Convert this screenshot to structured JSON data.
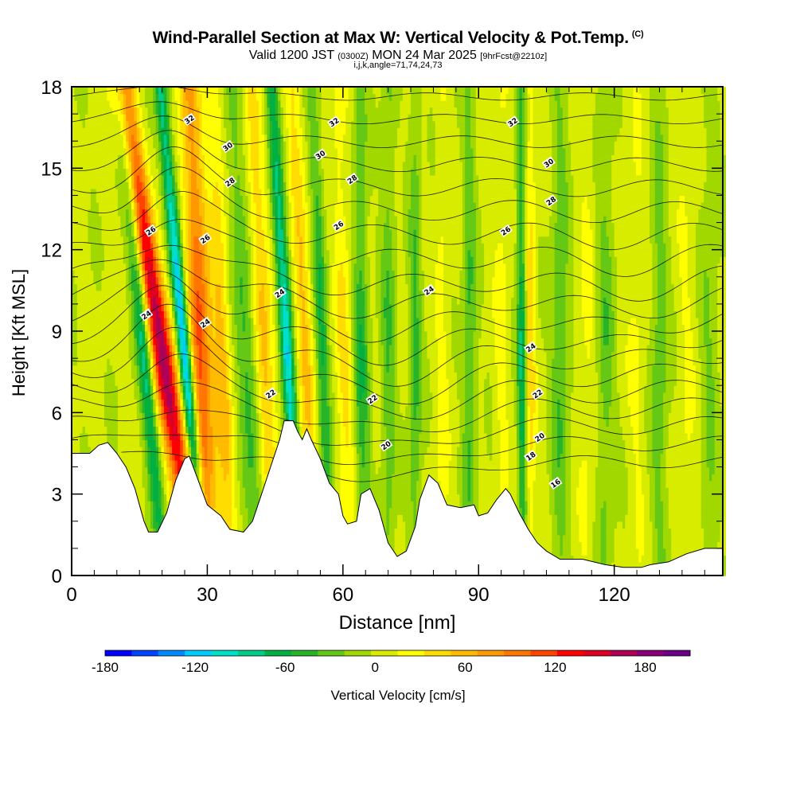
{
  "header": {
    "title": "Wind-Parallel Section at Max W: Vertical Velocity & Pot.Temp.",
    "title_tag": "(C)",
    "valid_main": "Valid 1200 JST",
    "valid_utc": "(0300Z)",
    "valid_date": "MON 24 Mar 2025",
    "forecast": "[9hrFcst@2210z]",
    "grid_info": "i,j,k,angle=71,74,24,73"
  },
  "chart_data": {
    "type": "heatmap",
    "xlabel": "Distance [nm]",
    "ylabel": "Height [Kft MSL]",
    "xlim": [
      0,
      144
    ],
    "ylim": [
      0,
      18
    ],
    "x_ticks": [
      "0",
      "30",
      "60",
      "90",
      "120"
    ],
    "y_ticks": [
      "0",
      "3",
      "6",
      "9",
      "12",
      "15",
      "18"
    ],
    "colorbar": {
      "label": "Vertical Velocity [cm/s]",
      "tick_labels": [
        "-180",
        "-120",
        "-60",
        "0",
        "60",
        "120",
        "180"
      ],
      "tick_values": [
        -180,
        -120,
        -60,
        0,
        60,
        120,
        180
      ],
      "range": [
        -180,
        210
      ],
      "colors": [
        "#0000ff",
        "#0044ff",
        "#0088ff",
        "#00ccff",
        "#00e0c8",
        "#00cc88",
        "#00b040",
        "#28b428",
        "#64c814",
        "#a0d800",
        "#d8ec00",
        "#ffff00",
        "#ffdd00",
        "#ffbb00",
        "#ff9900",
        "#ff7700",
        "#ff4400",
        "#ff0000",
        "#dd0022",
        "#b00055",
        "#880077",
        "#6a0088"
      ]
    },
    "terrain_kft": [
      {
        "x": 0,
        "y": 4.5
      },
      {
        "x": 4,
        "y": 4.5
      },
      {
        "x": 6,
        "y": 4.8
      },
      {
        "x": 8,
        "y": 4.9
      },
      {
        "x": 10,
        "y": 4.5
      },
      {
        "x": 12,
        "y": 4.0
      },
      {
        "x": 14,
        "y": 3.2
      },
      {
        "x": 16,
        "y": 2.0
      },
      {
        "x": 17,
        "y": 1.6
      },
      {
        "x": 19,
        "y": 1.6
      },
      {
        "x": 21,
        "y": 2.3
      },
      {
        "x": 23,
        "y": 3.5
      },
      {
        "x": 25,
        "y": 4.3
      },
      {
        "x": 26,
        "y": 4.4
      },
      {
        "x": 28,
        "y": 3.5
      },
      {
        "x": 30,
        "y": 2.6
      },
      {
        "x": 33,
        "y": 2.2
      },
      {
        "x": 35,
        "y": 1.7
      },
      {
        "x": 38,
        "y": 1.6
      },
      {
        "x": 40,
        "y": 2.0
      },
      {
        "x": 42,
        "y": 3.0
      },
      {
        "x": 44,
        "y": 4.0
      },
      {
        "x": 46,
        "y": 5.0
      },
      {
        "x": 47,
        "y": 5.7
      },
      {
        "x": 49,
        "y": 5.7
      },
      {
        "x": 50,
        "y": 5.3
      },
      {
        "x": 51,
        "y": 5.0
      },
      {
        "x": 52,
        "y": 5.4
      },
      {
        "x": 53,
        "y": 5.0
      },
      {
        "x": 55,
        "y": 4.3
      },
      {
        "x": 57,
        "y": 3.4
      },
      {
        "x": 59,
        "y": 3.0
      },
      {
        "x": 60,
        "y": 2.2
      },
      {
        "x": 61,
        "y": 1.9
      },
      {
        "x": 63,
        "y": 2.0
      },
      {
        "x": 64,
        "y": 3.0
      },
      {
        "x": 66,
        "y": 3.2
      },
      {
        "x": 68,
        "y": 2.4
      },
      {
        "x": 70,
        "y": 1.2
      },
      {
        "x": 72,
        "y": 0.7
      },
      {
        "x": 74,
        "y": 0.9
      },
      {
        "x": 76,
        "y": 1.8
      },
      {
        "x": 77,
        "y": 2.8
      },
      {
        "x": 79,
        "y": 3.7
      },
      {
        "x": 81,
        "y": 3.4
      },
      {
        "x": 83,
        "y": 2.6
      },
      {
        "x": 86,
        "y": 2.5
      },
      {
        "x": 89,
        "y": 2.6
      },
      {
        "x": 90,
        "y": 2.2
      },
      {
        "x": 92,
        "y": 2.3
      },
      {
        "x": 94,
        "y": 2.8
      },
      {
        "x": 96,
        "y": 3.2
      },
      {
        "x": 97,
        "y": 3.0
      },
      {
        "x": 99,
        "y": 2.3
      },
      {
        "x": 101,
        "y": 1.7
      },
      {
        "x": 103,
        "y": 1.2
      },
      {
        "x": 105,
        "y": 0.9
      },
      {
        "x": 108,
        "y": 0.6
      },
      {
        "x": 113,
        "y": 0.6
      },
      {
        "x": 118,
        "y": 0.4
      },
      {
        "x": 122,
        "y": 0.3
      },
      {
        "x": 126,
        "y": 0.3
      },
      {
        "x": 128,
        "y": 0.4
      },
      {
        "x": 132,
        "y": 0.5
      },
      {
        "x": 136,
        "y": 0.8
      },
      {
        "x": 140,
        "y": 1.0
      },
      {
        "x": 144,
        "y": 1.0
      }
    ],
    "features": [
      {
        "x": 15,
        "slope": 0.55,
        "w": 1.6,
        "amp": -85
      },
      {
        "x": 18.5,
        "slope": 0.9,
        "w": 2.6,
        "amp": 170
      },
      {
        "x": 24,
        "slope": 0.55,
        "w": 1.5,
        "amp": -150
      },
      {
        "x": 28,
        "slope": 0.25,
        "w": 2.6,
        "amp": 115
      },
      {
        "x": 33,
        "slope": 0.2,
        "w": 1.8,
        "amp": 55
      },
      {
        "x": 38,
        "slope": 0.35,
        "w": 2.2,
        "amp": -50
      },
      {
        "x": 42,
        "slope": 0.3,
        "w": 2.0,
        "amp": 60
      },
      {
        "x": 47,
        "slope": 0.35,
        "w": 1.5,
        "amp": -110
      },
      {
        "x": 51,
        "slope": 0.25,
        "w": 1.8,
        "amp": 55
      },
      {
        "x": 55,
        "slope": 0.2,
        "w": 1.4,
        "amp": -60
      },
      {
        "x": 60,
        "slope": 0.1,
        "w": 1.8,
        "amp": 35
      },
      {
        "x": 64,
        "slope": 0.05,
        "w": 1.6,
        "amp": -55
      },
      {
        "x": 70,
        "slope": 0.0,
        "w": 1.6,
        "amp": -40
      },
      {
        "x": 76,
        "slope": 0.0,
        "w": 1.4,
        "amp": -45
      },
      {
        "x": 82,
        "slope": 0.0,
        "w": 1.6,
        "amp": 20
      },
      {
        "x": 88,
        "slope": 0.0,
        "w": 1.5,
        "amp": -45
      },
      {
        "x": 95,
        "slope": 0.0,
        "w": 1.5,
        "amp": 20
      },
      {
        "x": 99.5,
        "slope": 0.03,
        "w": 1.0,
        "amp": -75
      },
      {
        "x": 101.5,
        "slope": 0.0,
        "w": 1.0,
        "amp": 45
      },
      {
        "x": 108,
        "slope": 0.0,
        "w": 2.0,
        "amp": -40
      },
      {
        "x": 114,
        "slope": 0.0,
        "w": 2.0,
        "amp": 18
      },
      {
        "x": 118,
        "slope": 0.0,
        "w": 2.0,
        "amp": -35
      },
      {
        "x": 125,
        "slope": 0.0,
        "w": 2.0,
        "amp": 15
      },
      {
        "x": 130,
        "slope": 0.0,
        "w": 2.0,
        "amp": -35
      },
      {
        "x": 136,
        "slope": 0.0,
        "w": 2.0,
        "amp": 15
      },
      {
        "x": 141,
        "slope": 0.0,
        "w": 2.0,
        "amp": -25
      }
    ],
    "isentrope_labels": [
      {
        "text": "32",
        "x": 26,
        "y": 16.8
      },
      {
        "text": "30",
        "x": 34.5,
        "y": 15.8
      },
      {
        "text": "28",
        "x": 35,
        "y": 14.5
      },
      {
        "text": "26",
        "x": 17.5,
        "y": 12.7
      },
      {
        "text": "26",
        "x": 29.5,
        "y": 12.4
      },
      {
        "text": "24",
        "x": 16.5,
        "y": 9.6
      },
      {
        "text": "24",
        "x": 29.5,
        "y": 9.3
      },
      {
        "text": "24",
        "x": 46,
        "y": 10.4
      },
      {
        "text": "22",
        "x": 44,
        "y": 6.7
      },
      {
        "text": "32",
        "x": 58,
        "y": 16.7
      },
      {
        "text": "30",
        "x": 55,
        "y": 15.5
      },
      {
        "text": "28",
        "x": 62,
        "y": 14.6
      },
      {
        "text": "26",
        "x": 59,
        "y": 12.9
      },
      {
        "text": "22",
        "x": 66.5,
        "y": 6.5
      },
      {
        "text": "20",
        "x": 69.5,
        "y": 4.8
      },
      {
        "text": "24",
        "x": 79,
        "y": 10.5
      },
      {
        "text": "32",
        "x": 97.5,
        "y": 16.7
      },
      {
        "text": "30",
        "x": 105.5,
        "y": 15.2
      },
      {
        "text": "28",
        "x": 106,
        "y": 13.8
      },
      {
        "text": "26",
        "x": 96,
        "y": 12.7
      },
      {
        "text": "24",
        "x": 101.5,
        "y": 8.4
      },
      {
        "text": "22",
        "x": 103,
        "y": 6.7
      },
      {
        "text": "20",
        "x": 103.5,
        "y": 5.1
      },
      {
        "text": "18",
        "x": 101.5,
        "y": 4.4
      },
      {
        "text": "16",
        "x": 107,
        "y": 3.4
      }
    ]
  }
}
